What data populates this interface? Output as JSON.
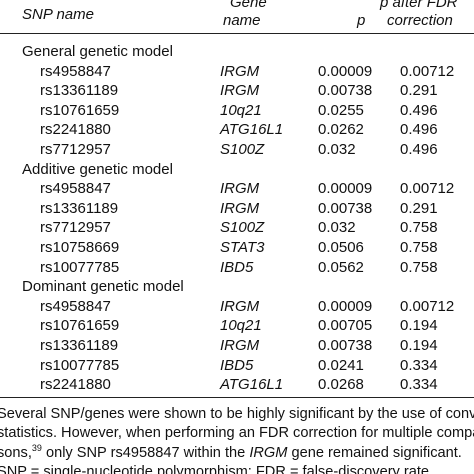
{
  "header": {
    "snp": "SNP name",
    "gene": [
      "Gene",
      "name"
    ],
    "p": "p",
    "fdr": [
      "p after FDR",
      "correction"
    ]
  },
  "sections": [
    {
      "title": "General genetic model",
      "rows": [
        [
          "rs4958847",
          "IRGM",
          "0.00009",
          "0.00712"
        ],
        [
          "rs13361189",
          "IRGM",
          "0.00738",
          "0.291"
        ],
        [
          "rs10761659",
          "10q21",
          "0.0255",
          "0.496"
        ],
        [
          "rs2241880",
          "ATG16L1",
          "0.0262",
          "0.496"
        ],
        [
          "rs7712957",
          "S100Z",
          "0.032",
          "0.496"
        ]
      ]
    },
    {
      "title": "Additive genetic model",
      "rows": [
        [
          "rs4958847",
          "IRGM",
          "0.00009",
          "0.00712"
        ],
        [
          "rs13361189",
          "IRGM",
          "0.00738",
          "0.291"
        ],
        [
          "rs7712957",
          "S100Z",
          "0.032",
          "0.758"
        ],
        [
          "rs10758669",
          "STAT3",
          "0.0506",
          "0.758"
        ],
        [
          "rs10077785",
          "IBD5",
          "0.0562",
          "0.758"
        ]
      ]
    },
    {
      "title": "Dominant genetic model",
      "rows": [
        [
          "rs4958847",
          "IRGM",
          "0.00009",
          "0.00712"
        ],
        [
          "rs10761659",
          "10q21",
          "0.00705",
          "0.194"
        ],
        [
          "rs13361189",
          "IRGM",
          "0.00738",
          "0.194"
        ],
        [
          "rs10077785",
          "IBD5",
          "0.0241",
          "0.334"
        ],
        [
          "rs2241880",
          "ATG16L1",
          "0.0268",
          "0.334"
        ]
      ]
    }
  ],
  "footnote": {
    "line1": "Several SNP/genes were shown to be highly significant by the use of conventional",
    "line2": "statistics. However, when performing an FDR correction for multiple compari-",
    "line3a": "sons,",
    "line3sup": "39",
    "line3b": " only SNP rs4958847 within the ",
    "line3gene": "IRGM",
    "line3c": " gene remained significant.",
    "line4": "SNP = single-nucleotide polymorphism; FDR = false-discovery rate."
  }
}
